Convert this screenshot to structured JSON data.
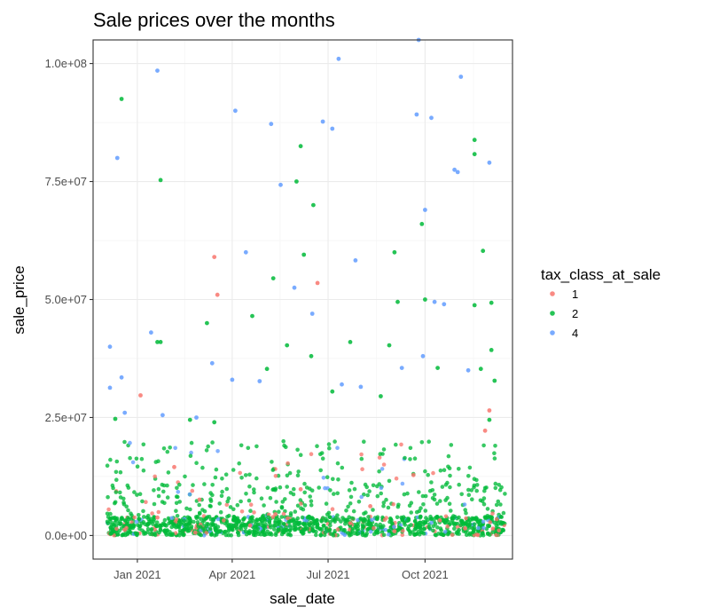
{
  "chart_data": {
    "type": "scatter",
    "title": "Sale prices over the months",
    "xlabel": "sale_date",
    "ylabel": "sale_price",
    "x_axis": {
      "type": "date",
      "range": [
        "2020-11-20",
        "2021-12-23"
      ],
      "ticks": [
        {
          "date": "2021-01-01",
          "label": "Jan 2021"
        },
        {
          "date": "2021-04-01",
          "label": "Apr 2021"
        },
        {
          "date": "2021-07-01",
          "label": "Jul 2021"
        },
        {
          "date": "2021-10-01",
          "label": "Oct 2021"
        }
      ]
    },
    "y_axis": {
      "range": [
        -5000000,
        105000000
      ],
      "ticks": [
        {
          "value": 0,
          "label": "0.0e+00"
        },
        {
          "value": 25000000,
          "label": "2.5e+07"
        },
        {
          "value": 50000000,
          "label": "5.0e+07"
        },
        {
          "value": 75000000,
          "label": "7.5e+07"
        },
        {
          "value": 100000000,
          "label": "1.0e+08"
        }
      ]
    },
    "grid": true,
    "legend": {
      "title": "tax_class_at_sale",
      "placement": "right",
      "entries": [
        "1",
        "2",
        "4"
      ]
    },
    "colors": {
      "1": "#F8766D",
      "2": "#00BA38",
      "4": "#619CFF"
    },
    "series": [
      {
        "name": "1",
        "points": [
          {
            "x": "2021-01-04",
            "y": 29700000
          },
          {
            "x": "2021-03-15",
            "y": 59000000
          },
          {
            "x": "2021-03-18",
            "y": 51000000
          },
          {
            "x": "2021-06-21",
            "y": 53500000
          },
          {
            "x": "2021-12-01",
            "y": 26500000
          },
          {
            "x": "2021-11-27",
            "y": 22200000
          },
          {
            "x": "2021-02-05",
            "y": 14500000
          },
          {
            "x": "2021-09-20",
            "y": 12800000
          },
          {
            "x": "2021-06-05",
            "y": 9800000
          },
          {
            "x": "2021-03-01",
            "y": 7600000
          },
          {
            "x": "2021-08-10",
            "y": 6200000
          },
          {
            "x": "2021-05-12",
            "y": 4500000
          },
          {
            "x": "2021-01-20",
            "y": 3800000
          },
          {
            "x": "2021-10-15",
            "y": 3200000
          },
          {
            "x": "2021-07-22",
            "y": 2600000
          },
          {
            "x": "2021-04-18",
            "y": 2100000
          },
          {
            "x": "2021-11-08",
            "y": 1500000
          },
          {
            "x": "2020-12-20",
            "y": 1200000
          },
          {
            "x": "2021-09-02",
            "y": 900000
          },
          {
            "x": "2021-02-25",
            "y": 600000
          }
        ]
      },
      {
        "name": "2",
        "points": [
          {
            "x": "2020-12-17",
            "y": 92500000
          },
          {
            "x": "2021-01-23",
            "y": 75300000
          },
          {
            "x": "2021-01-20",
            "y": 41000000
          },
          {
            "x": "2021-01-23",
            "y": 41000000
          },
          {
            "x": "2021-03-08",
            "y": 45000000
          },
          {
            "x": "2021-04-20",
            "y": 46500000
          },
          {
            "x": "2021-05-10",
            "y": 54500000
          },
          {
            "x": "2021-06-01",
            "y": 75000000
          },
          {
            "x": "2021-06-05",
            "y": 82500000
          },
          {
            "x": "2021-06-08",
            "y": 59500000
          },
          {
            "x": "2021-06-17",
            "y": 70000000
          },
          {
            "x": "2021-07-22",
            "y": 41000000
          },
          {
            "x": "2021-09-02",
            "y": 60000000
          },
          {
            "x": "2021-09-05",
            "y": 49500000
          },
          {
            "x": "2021-09-28",
            "y": 66000000
          },
          {
            "x": "2021-10-01",
            "y": 50000000
          },
          {
            "x": "2021-11-17",
            "y": 80800000
          },
          {
            "x": "2021-11-17",
            "y": 83800000
          },
          {
            "x": "2021-11-25",
            "y": 60300000
          },
          {
            "x": "2021-11-17",
            "y": 48800000
          },
          {
            "x": "2021-12-03",
            "y": 49300000
          },
          {
            "x": "2021-12-03",
            "y": 39300000
          },
          {
            "x": "2021-12-06",
            "y": 32800000
          },
          {
            "x": "2021-06-15",
            "y": 38000000
          },
          {
            "x": "2021-05-23",
            "y": 40300000
          },
          {
            "x": "2021-05-04",
            "y": 35300000
          },
          {
            "x": "2021-08-28",
            "y": 40300000
          },
          {
            "x": "2021-10-13",
            "y": 35500000
          },
          {
            "x": "2020-12-11",
            "y": 24700000
          },
          {
            "x": "2021-02-20",
            "y": 24500000
          },
          {
            "x": "2021-03-15",
            "y": 24000000
          },
          {
            "x": "2021-07-05",
            "y": 30500000
          },
          {
            "x": "2021-08-20",
            "y": 29500000
          },
          {
            "x": "2021-11-23",
            "y": 35300000
          },
          {
            "x": "2021-12-01",
            "y": 24500000
          }
        ]
      },
      {
        "name": "4",
        "points": [
          {
            "x": "2020-12-06",
            "y": 40000000
          },
          {
            "x": "2020-12-06",
            "y": 31300000
          },
          {
            "x": "2020-12-13",
            "y": 80000000
          },
          {
            "x": "2020-12-17",
            "y": 33500000
          },
          {
            "x": "2021-01-14",
            "y": 43000000
          },
          {
            "x": "2021-01-20",
            "y": 98500000
          },
          {
            "x": "2021-02-26",
            "y": 25000000
          },
          {
            "x": "2021-03-13",
            "y": 36500000
          },
          {
            "x": "2021-04-04",
            "y": 90000000
          },
          {
            "x": "2021-04-14",
            "y": 60000000
          },
          {
            "x": "2021-05-08",
            "y": 87200000
          },
          {
            "x": "2021-05-17",
            "y": 74300000
          },
          {
            "x": "2021-05-30",
            "y": 52500000
          },
          {
            "x": "2021-06-26",
            "y": 87700000
          },
          {
            "x": "2021-06-16",
            "y": 47000000
          },
          {
            "x": "2021-07-05",
            "y": 86200000
          },
          {
            "x": "2021-07-11",
            "y": 101000000
          },
          {
            "x": "2021-07-27",
            "y": 58300000
          },
          {
            "x": "2021-09-09",
            "y": 35500000
          },
          {
            "x": "2021-09-23",
            "y": 89200000
          },
          {
            "x": "2021-09-25",
            "y": 105000000
          },
          {
            "x": "2021-10-01",
            "y": 69000000
          },
          {
            "x": "2021-10-07",
            "y": 88500000
          },
          {
            "x": "2021-10-10",
            "y": 49500000
          },
          {
            "x": "2021-10-29",
            "y": 77500000
          },
          {
            "x": "2021-11-01",
            "y": 77000000
          },
          {
            "x": "2021-11-04",
            "y": 97200000
          },
          {
            "x": "2021-12-01",
            "y": 79000000
          },
          {
            "x": "2021-11-11",
            "y": 35000000
          },
          {
            "x": "2021-10-19",
            "y": 49000000
          },
          {
            "x": "2021-09-29",
            "y": 38000000
          },
          {
            "x": "2021-04-01",
            "y": 33000000
          },
          {
            "x": "2021-04-27",
            "y": 32700000
          },
          {
            "x": "2021-07-14",
            "y": 32000000
          },
          {
            "x": "2021-08-01",
            "y": 31500000
          },
          {
            "x": "2020-12-20",
            "y": 26000000
          },
          {
            "x": "2021-01-25",
            "y": 25500000
          }
        ]
      }
    ]
  }
}
